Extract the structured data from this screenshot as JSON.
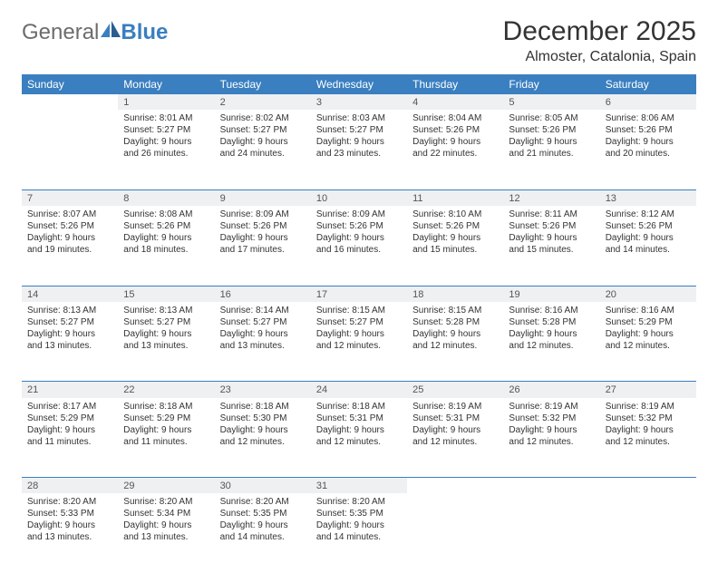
{
  "logo": {
    "left": "General",
    "right": "Blue"
  },
  "title": "December 2025",
  "location": "Almoster, Catalonia, Spain",
  "colors": {
    "header_bg": "#3a7fc0",
    "header_text": "#ffffff",
    "daynum_bg": "#eef0f2",
    "rule": "#3a7fc0",
    "text": "#333333",
    "logo_gray": "#6c6c6c",
    "logo_blue": "#3a7fc0"
  },
  "daynames": [
    "Sunday",
    "Monday",
    "Tuesday",
    "Wednesday",
    "Thursday",
    "Friday",
    "Saturday"
  ],
  "weeks": [
    [
      {
        "n": "",
        "sr": "",
        "ss": "",
        "dl": ""
      },
      {
        "n": "1",
        "sr": "Sunrise: 8:01 AM",
        "ss": "Sunset: 5:27 PM",
        "dl": "Daylight: 9 hours and 26 minutes."
      },
      {
        "n": "2",
        "sr": "Sunrise: 8:02 AM",
        "ss": "Sunset: 5:27 PM",
        "dl": "Daylight: 9 hours and 24 minutes."
      },
      {
        "n": "3",
        "sr": "Sunrise: 8:03 AM",
        "ss": "Sunset: 5:27 PM",
        "dl": "Daylight: 9 hours and 23 minutes."
      },
      {
        "n": "4",
        "sr": "Sunrise: 8:04 AM",
        "ss": "Sunset: 5:26 PM",
        "dl": "Daylight: 9 hours and 22 minutes."
      },
      {
        "n": "5",
        "sr": "Sunrise: 8:05 AM",
        "ss": "Sunset: 5:26 PM",
        "dl": "Daylight: 9 hours and 21 minutes."
      },
      {
        "n": "6",
        "sr": "Sunrise: 8:06 AM",
        "ss": "Sunset: 5:26 PM",
        "dl": "Daylight: 9 hours and 20 minutes."
      }
    ],
    [
      {
        "n": "7",
        "sr": "Sunrise: 8:07 AM",
        "ss": "Sunset: 5:26 PM",
        "dl": "Daylight: 9 hours and 19 minutes."
      },
      {
        "n": "8",
        "sr": "Sunrise: 8:08 AM",
        "ss": "Sunset: 5:26 PM",
        "dl": "Daylight: 9 hours and 18 minutes."
      },
      {
        "n": "9",
        "sr": "Sunrise: 8:09 AM",
        "ss": "Sunset: 5:26 PM",
        "dl": "Daylight: 9 hours and 17 minutes."
      },
      {
        "n": "10",
        "sr": "Sunrise: 8:09 AM",
        "ss": "Sunset: 5:26 PM",
        "dl": "Daylight: 9 hours and 16 minutes."
      },
      {
        "n": "11",
        "sr": "Sunrise: 8:10 AM",
        "ss": "Sunset: 5:26 PM",
        "dl": "Daylight: 9 hours and 15 minutes."
      },
      {
        "n": "12",
        "sr": "Sunrise: 8:11 AM",
        "ss": "Sunset: 5:26 PM",
        "dl": "Daylight: 9 hours and 15 minutes."
      },
      {
        "n": "13",
        "sr": "Sunrise: 8:12 AM",
        "ss": "Sunset: 5:26 PM",
        "dl": "Daylight: 9 hours and 14 minutes."
      }
    ],
    [
      {
        "n": "14",
        "sr": "Sunrise: 8:13 AM",
        "ss": "Sunset: 5:27 PM",
        "dl": "Daylight: 9 hours and 13 minutes."
      },
      {
        "n": "15",
        "sr": "Sunrise: 8:13 AM",
        "ss": "Sunset: 5:27 PM",
        "dl": "Daylight: 9 hours and 13 minutes."
      },
      {
        "n": "16",
        "sr": "Sunrise: 8:14 AM",
        "ss": "Sunset: 5:27 PM",
        "dl": "Daylight: 9 hours and 13 minutes."
      },
      {
        "n": "17",
        "sr": "Sunrise: 8:15 AM",
        "ss": "Sunset: 5:27 PM",
        "dl": "Daylight: 9 hours and 12 minutes."
      },
      {
        "n": "18",
        "sr": "Sunrise: 8:15 AM",
        "ss": "Sunset: 5:28 PM",
        "dl": "Daylight: 9 hours and 12 minutes."
      },
      {
        "n": "19",
        "sr": "Sunrise: 8:16 AM",
        "ss": "Sunset: 5:28 PM",
        "dl": "Daylight: 9 hours and 12 minutes."
      },
      {
        "n": "20",
        "sr": "Sunrise: 8:16 AM",
        "ss": "Sunset: 5:29 PM",
        "dl": "Daylight: 9 hours and 12 minutes."
      }
    ],
    [
      {
        "n": "21",
        "sr": "Sunrise: 8:17 AM",
        "ss": "Sunset: 5:29 PM",
        "dl": "Daylight: 9 hours and 11 minutes."
      },
      {
        "n": "22",
        "sr": "Sunrise: 8:18 AM",
        "ss": "Sunset: 5:29 PM",
        "dl": "Daylight: 9 hours and 11 minutes."
      },
      {
        "n": "23",
        "sr": "Sunrise: 8:18 AM",
        "ss": "Sunset: 5:30 PM",
        "dl": "Daylight: 9 hours and 12 minutes."
      },
      {
        "n": "24",
        "sr": "Sunrise: 8:18 AM",
        "ss": "Sunset: 5:31 PM",
        "dl": "Daylight: 9 hours and 12 minutes."
      },
      {
        "n": "25",
        "sr": "Sunrise: 8:19 AM",
        "ss": "Sunset: 5:31 PM",
        "dl": "Daylight: 9 hours and 12 minutes."
      },
      {
        "n": "26",
        "sr": "Sunrise: 8:19 AM",
        "ss": "Sunset: 5:32 PM",
        "dl": "Daylight: 9 hours and 12 minutes."
      },
      {
        "n": "27",
        "sr": "Sunrise: 8:19 AM",
        "ss": "Sunset: 5:32 PM",
        "dl": "Daylight: 9 hours and 12 minutes."
      }
    ],
    [
      {
        "n": "28",
        "sr": "Sunrise: 8:20 AM",
        "ss": "Sunset: 5:33 PM",
        "dl": "Daylight: 9 hours and 13 minutes."
      },
      {
        "n": "29",
        "sr": "Sunrise: 8:20 AM",
        "ss": "Sunset: 5:34 PM",
        "dl": "Daylight: 9 hours and 13 minutes."
      },
      {
        "n": "30",
        "sr": "Sunrise: 8:20 AM",
        "ss": "Sunset: 5:35 PM",
        "dl": "Daylight: 9 hours and 14 minutes."
      },
      {
        "n": "31",
        "sr": "Sunrise: 8:20 AM",
        "ss": "Sunset: 5:35 PM",
        "dl": "Daylight: 9 hours and 14 minutes."
      },
      {
        "n": "",
        "sr": "",
        "ss": "",
        "dl": ""
      },
      {
        "n": "",
        "sr": "",
        "ss": "",
        "dl": ""
      },
      {
        "n": "",
        "sr": "",
        "ss": "",
        "dl": ""
      }
    ]
  ]
}
